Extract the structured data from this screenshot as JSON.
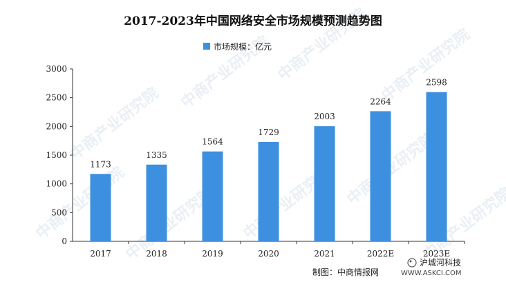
{
  "chart_data": {
    "type": "bar",
    "title": "2017-2023年中国网络安全市场规模预测趋势图",
    "categories": [
      "2017",
      "2018",
      "2019",
      "2020",
      "2021",
      "2022E",
      "2023E"
    ],
    "series": [
      {
        "name": "市场规模：亿元",
        "values": [
          1173,
          1335,
          1564,
          1729,
          2003,
          2264,
          2598
        ]
      }
    ],
    "ylim": [
      0,
      3000
    ],
    "yticks": [
      0,
      500,
      1000,
      1500,
      2000,
      2500,
      3000
    ],
    "grid": false,
    "legend_position": "top-center",
    "bar_color": "#3d8fe0"
  },
  "footer": {
    "source": "制图：中商情报网",
    "site": "WWW.ASKCI.COM"
  },
  "watermark": {
    "brand": "沪城河科技",
    "text": "中商产业研究院"
  }
}
